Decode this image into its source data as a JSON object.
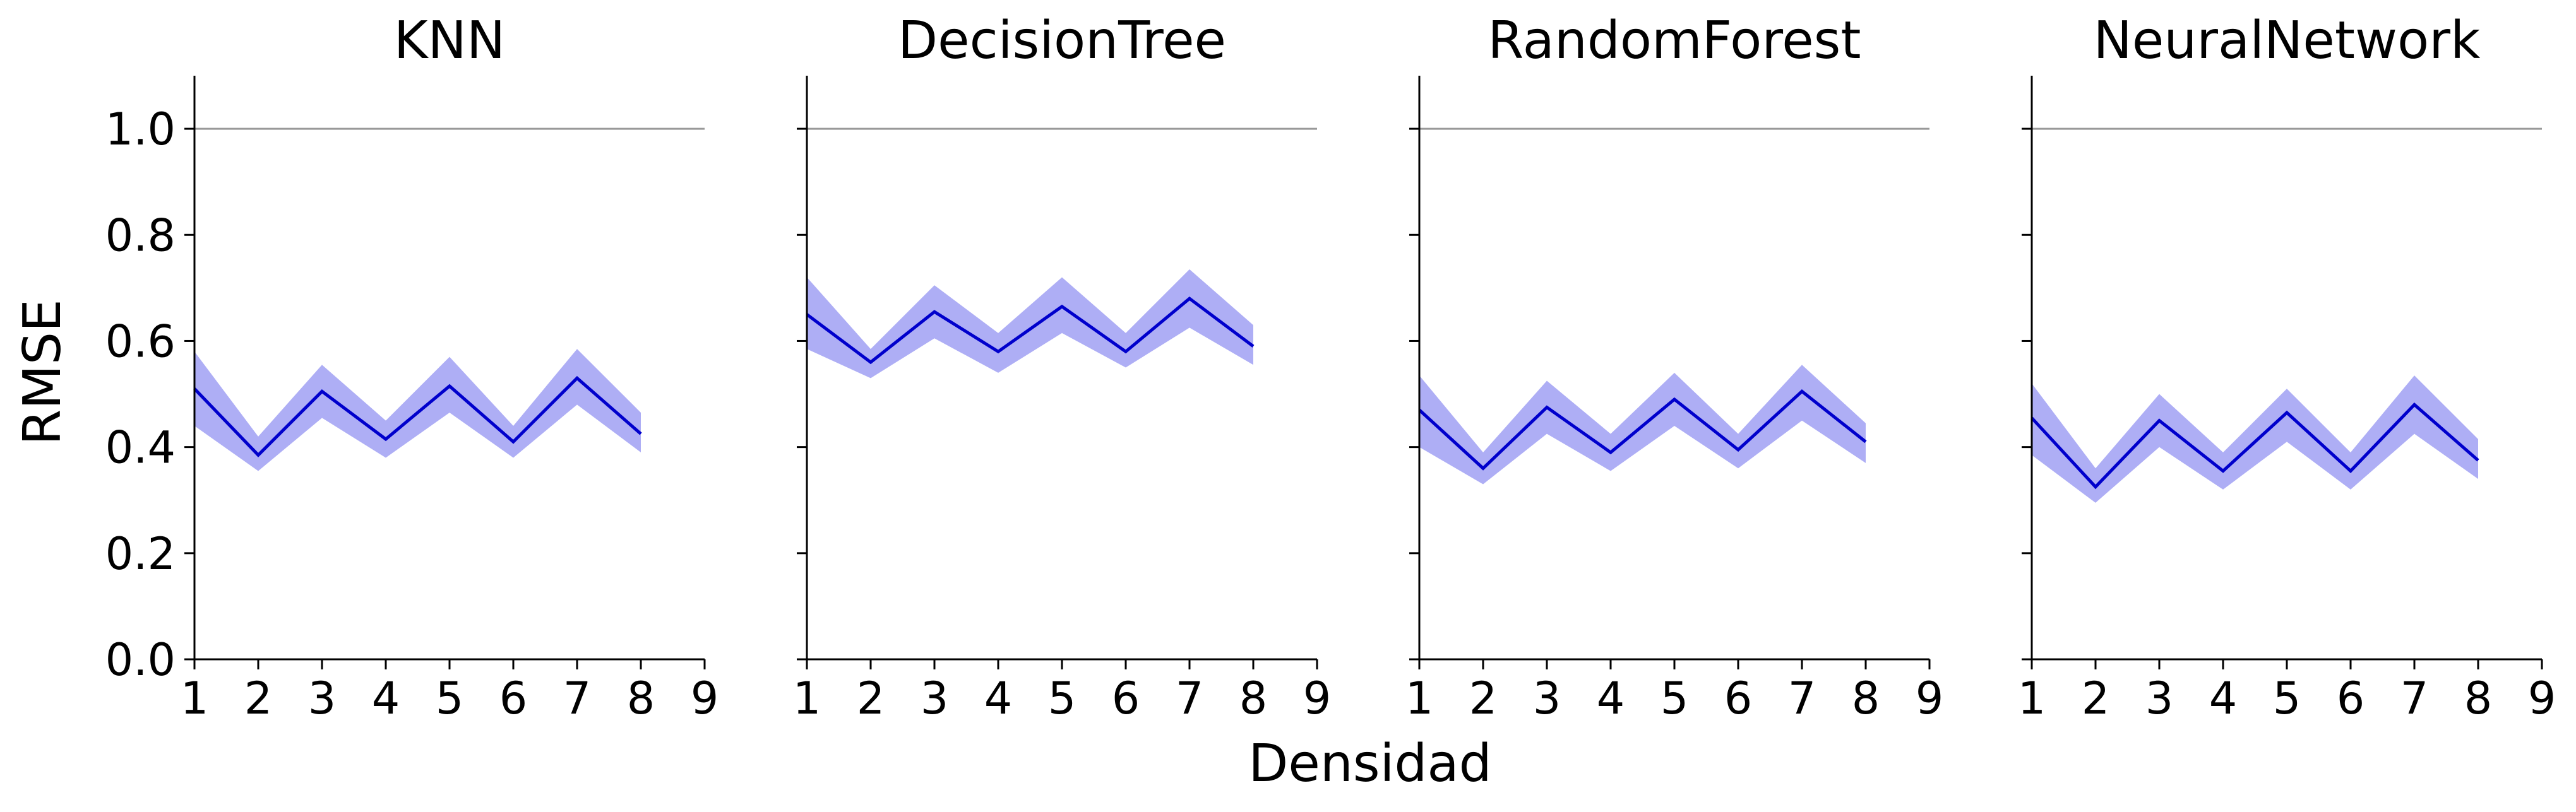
{
  "chart_data": {
    "type": "line",
    "xlabel": "Densidad",
    "ylabel": "RMSE",
    "xlim": [
      1,
      9
    ],
    "ylim": [
      0,
      1.1
    ],
    "xticks": [
      "1",
      "2",
      "3",
      "4",
      "5",
      "6",
      "7",
      "8",
      "9"
    ],
    "yticks": [
      "0.0",
      "0.2",
      "0.4",
      "0.6",
      "0.8",
      "1.0"
    ],
    "reference_line": 1.0,
    "grid": false,
    "colors": {
      "line": "#0000cc",
      "band": "#aeaef5",
      "reference": "#999999"
    },
    "panels": [
      {
        "title": "KNN",
        "x": [
          1,
          2,
          3,
          4,
          5,
          6,
          7,
          8
        ],
        "mean": [
          0.51,
          0.385,
          0.505,
          0.415,
          0.515,
          0.41,
          0.53,
          0.425
        ],
        "lower": [
          0.44,
          0.355,
          0.455,
          0.38,
          0.465,
          0.38,
          0.48,
          0.39
        ],
        "upper": [
          0.58,
          0.42,
          0.555,
          0.45,
          0.57,
          0.44,
          0.585,
          0.465
        ]
      },
      {
        "title": "DecisionTree",
        "x": [
          1,
          2,
          3,
          4,
          5,
          6,
          7,
          8
        ],
        "mean": [
          0.65,
          0.56,
          0.655,
          0.58,
          0.665,
          0.58,
          0.68,
          0.59
        ],
        "lower": [
          0.585,
          0.53,
          0.605,
          0.54,
          0.615,
          0.55,
          0.625,
          0.555
        ],
        "upper": [
          0.72,
          0.585,
          0.705,
          0.615,
          0.72,
          0.615,
          0.735,
          0.63
        ]
      },
      {
        "title": "RandomForest",
        "x": [
          1,
          2,
          3,
          4,
          5,
          6,
          7,
          8
        ],
        "mean": [
          0.47,
          0.36,
          0.475,
          0.39,
          0.49,
          0.395,
          0.505,
          0.41
        ],
        "lower": [
          0.4,
          0.33,
          0.425,
          0.355,
          0.44,
          0.36,
          0.45,
          0.37
        ],
        "upper": [
          0.535,
          0.39,
          0.525,
          0.425,
          0.54,
          0.425,
          0.555,
          0.445
        ]
      },
      {
        "title": "NeuralNetwork",
        "x": [
          1,
          2,
          3,
          4,
          5,
          6,
          7,
          8
        ],
        "mean": [
          0.455,
          0.325,
          0.45,
          0.355,
          0.465,
          0.355,
          0.48,
          0.375
        ],
        "lower": [
          0.385,
          0.295,
          0.4,
          0.32,
          0.41,
          0.32,
          0.425,
          0.34
        ],
        "upper": [
          0.52,
          0.36,
          0.5,
          0.39,
          0.51,
          0.39,
          0.535,
          0.415
        ]
      }
    ]
  }
}
